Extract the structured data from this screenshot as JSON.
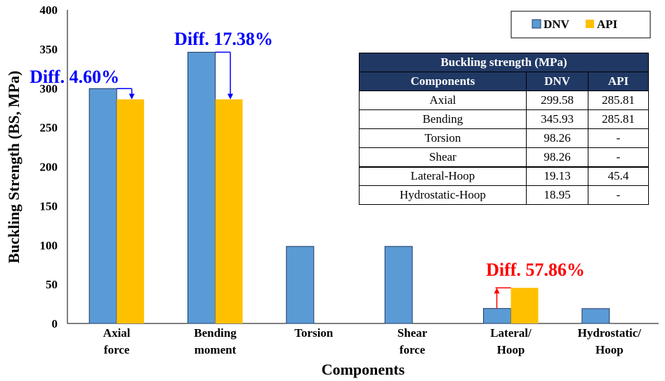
{
  "chart_data": {
    "type": "bar",
    "title": "",
    "xlabel": "Components",
    "ylabel": "Buckling Strength (BS, MPa)",
    "ylim": [
      0,
      400
    ],
    "yticks": [
      "0",
      "50",
      "100",
      "150",
      "200",
      "250",
      "300",
      "350",
      "400"
    ],
    "categories": [
      [
        "Axial",
        "force"
      ],
      [
        "Bending",
        "moment"
      ],
      [
        "Torsion"
      ],
      [
        "Shear",
        "force"
      ],
      [
        "Lateral/",
        "Hoop"
      ],
      [
        "Hydrostatic/",
        "Hoop"
      ]
    ],
    "series": [
      {
        "name": "DNV",
        "color": "#5B9BD5",
        "values": [
          299.58,
          345.93,
          98.26,
          98.26,
          19.13,
          18.95
        ]
      },
      {
        "name": "API",
        "color": "#FFC000",
        "values": [
          285.81,
          285.81,
          null,
          null,
          45.4,
          null
        ]
      }
    ],
    "legend_position": "top-right",
    "grid": false,
    "annotations": [
      {
        "text": "Diff. 4.60%",
        "category": 0,
        "color": "#0000FF"
      },
      {
        "text": "Diff. 17.38%",
        "category": 1,
        "color": "#0000FF"
      },
      {
        "text": "Diff. 57.86%",
        "category": 4,
        "color": "#FF0000"
      }
    ]
  },
  "table": {
    "caption": "Buckling strength (MPa)",
    "headers": [
      "Components",
      "DNV",
      "API"
    ],
    "rows": [
      [
        "Axial",
        "299.58",
        "285.81"
      ],
      [
        "Bending",
        "345.93",
        "285.81"
      ],
      [
        "Torsion",
        "98.26",
        "-"
      ],
      [
        "Shear",
        "98.26",
        "-"
      ],
      [
        "Lateral-Hoop",
        "19.13",
        "45.4"
      ],
      [
        "Hydrostatic-Hoop",
        "18.95",
        "-"
      ]
    ]
  }
}
